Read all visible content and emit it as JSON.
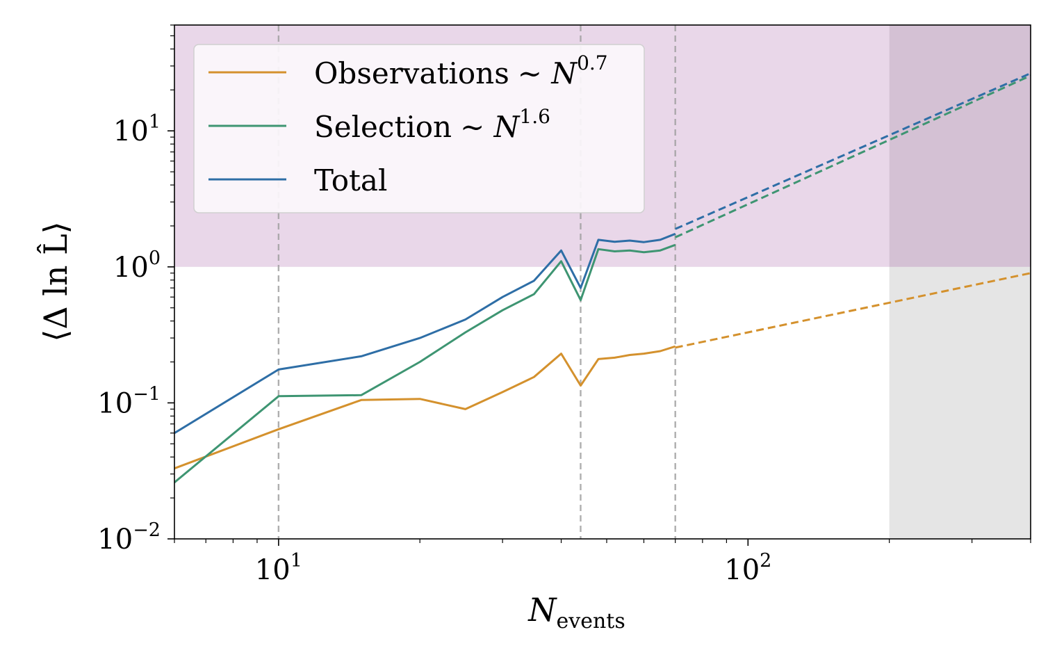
{
  "chart_data": {
    "type": "line",
    "xscale": "log",
    "yscale": "log",
    "xlim": [
      6,
      400
    ],
    "ylim": [
      0.01,
      60
    ],
    "xlabel": "N",
    "xlabel_sub": "events",
    "ylabel": "⟨Δ ln L̂⟩",
    "x_ticks": [
      {
        "value": 10,
        "base": "10",
        "exp": "1"
      },
      {
        "value": 100,
        "base": "10",
        "exp": "2"
      }
    ],
    "y_ticks": [
      {
        "value": 0.01,
        "base": "10",
        "exp": "−2"
      },
      {
        "value": 0.1,
        "base": "10",
        "exp": "−1"
      },
      {
        "value": 1,
        "base": "10",
        "exp": "0"
      },
      {
        "value": 10,
        "base": "10",
        "exp": "1"
      }
    ],
    "grid": false,
    "legend_position": "upper-left",
    "shaded_regions": [
      {
        "kind": "y-above",
        "y_from": 1,
        "color": "#e9d7e9"
      },
      {
        "kind": "x-beyond",
        "x_from": 200,
        "color": "#e5e5e5"
      },
      {
        "kind": "overlap",
        "x_from": 200,
        "y_from": 1,
        "color": "#d4c1d4"
      }
    ],
    "vlines": [
      10,
      44,
      70
    ],
    "series": [
      {
        "name": "Observations",
        "legend_suffix": "∼ N",
        "legend_exp": "0.7",
        "color": "#d4912d",
        "x": [
          6,
          10,
          15,
          20,
          25,
          30,
          35,
          40,
          44,
          48,
          52,
          56,
          60,
          65,
          70
        ],
        "y": [
          0.033,
          0.064,
          0.105,
          0.107,
          0.09,
          0.12,
          0.155,
          0.23,
          0.134,
          0.21,
          0.215,
          0.225,
          0.23,
          0.24,
          0.26
        ],
        "extrapolation": {
          "x": [
            70,
            400
          ],
          "y": [
            0.255,
            0.9
          ]
        }
      },
      {
        "name": "Selection",
        "legend_suffix": "∼ N",
        "legend_exp": "1.6",
        "color": "#3e9572",
        "x": [
          6,
          10,
          15,
          20,
          25,
          30,
          35,
          40,
          44,
          48,
          52,
          56,
          60,
          65,
          70
        ],
        "y": [
          0.026,
          0.112,
          0.114,
          0.2,
          0.33,
          0.48,
          0.63,
          1.1,
          0.57,
          1.35,
          1.3,
          1.32,
          1.28,
          1.32,
          1.45
        ],
        "extrapolation": {
          "x": [
            70,
            400
          ],
          "y": [
            1.65,
            25.5
          ]
        }
      },
      {
        "name": "Total",
        "legend_suffix": "",
        "legend_exp": "",
        "color": "#2e6ea6",
        "x": [
          6,
          10,
          15,
          20,
          25,
          30,
          35,
          40,
          44,
          48,
          52,
          56,
          60,
          65,
          70
        ],
        "y": [
          0.06,
          0.176,
          0.22,
          0.3,
          0.41,
          0.6,
          0.79,
          1.32,
          0.7,
          1.58,
          1.53,
          1.56,
          1.52,
          1.58,
          1.75
        ],
        "extrapolation": {
          "x": [
            70,
            400
          ],
          "y": [
            1.9,
            26.5
          ]
        }
      }
    ]
  }
}
